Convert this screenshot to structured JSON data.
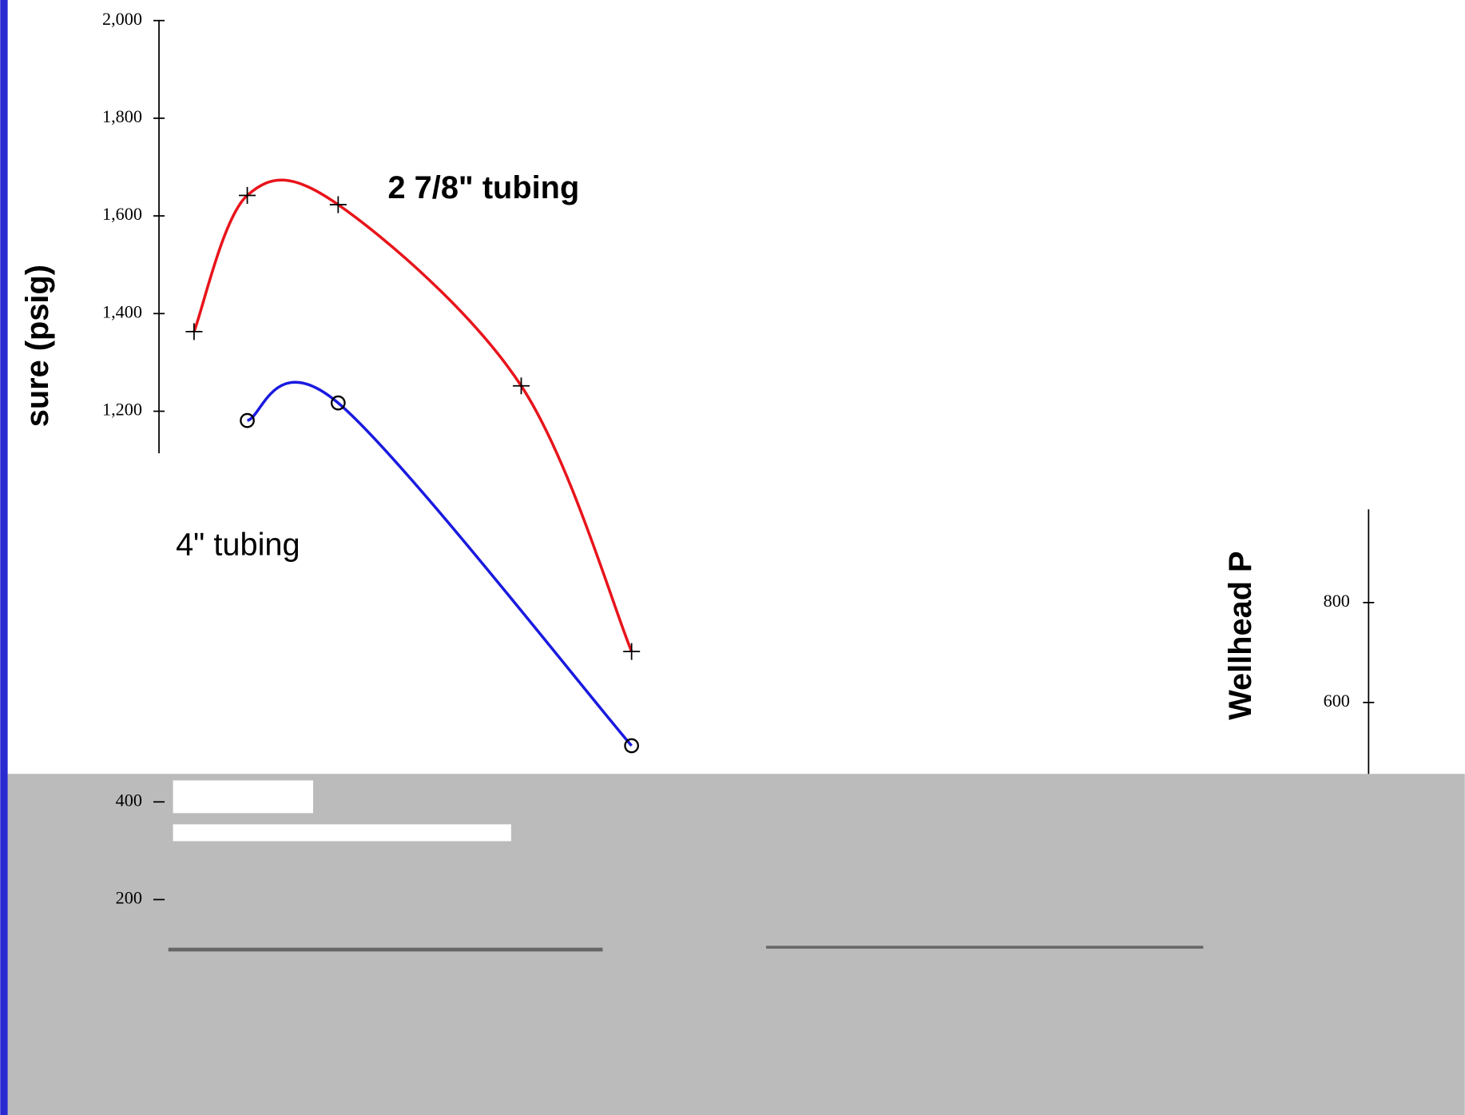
{
  "chart_data": {
    "type": "line",
    "ylabel": "sure (psig)",
    "y2label": "Wellhead P",
    "annotations": [
      "2 7/8\" tubing",
      "4\" tubing"
    ],
    "xlim": [
      0,
      100
    ],
    "ylim": [
      0,
      2000
    ],
    "yticks": [
      {
        "value": 2000,
        "label": "2,000"
      },
      {
        "value": 1800,
        "label": "1,800"
      },
      {
        "value": 1600,
        "label": "1,600"
      },
      {
        "value": 1400,
        "label": "1,400"
      },
      {
        "value": 1200,
        "label": "1,200"
      },
      400,
      200
    ],
    "y2lim": [
      10,
      1965
    ],
    "y2ticks": [
      800,
      600
    ],
    "grid": false,
    "series": [
      {
        "name": "2 7/8\" tubing",
        "color": "#e8141b",
        "marker": "plus",
        "x": [
          2.7,
          6.8,
          13.8,
          27.9,
          36.4
        ],
        "values": [
          1363,
          1642,
          1623,
          1252,
          708
        ]
      },
      {
        "name": "4\" tubing",
        "color": "#1a1ae0",
        "marker": "circle",
        "x": [
          6.8,
          13.8,
          36.4
        ],
        "values": [
          1181,
          1217,
          515
        ]
      }
    ]
  }
}
